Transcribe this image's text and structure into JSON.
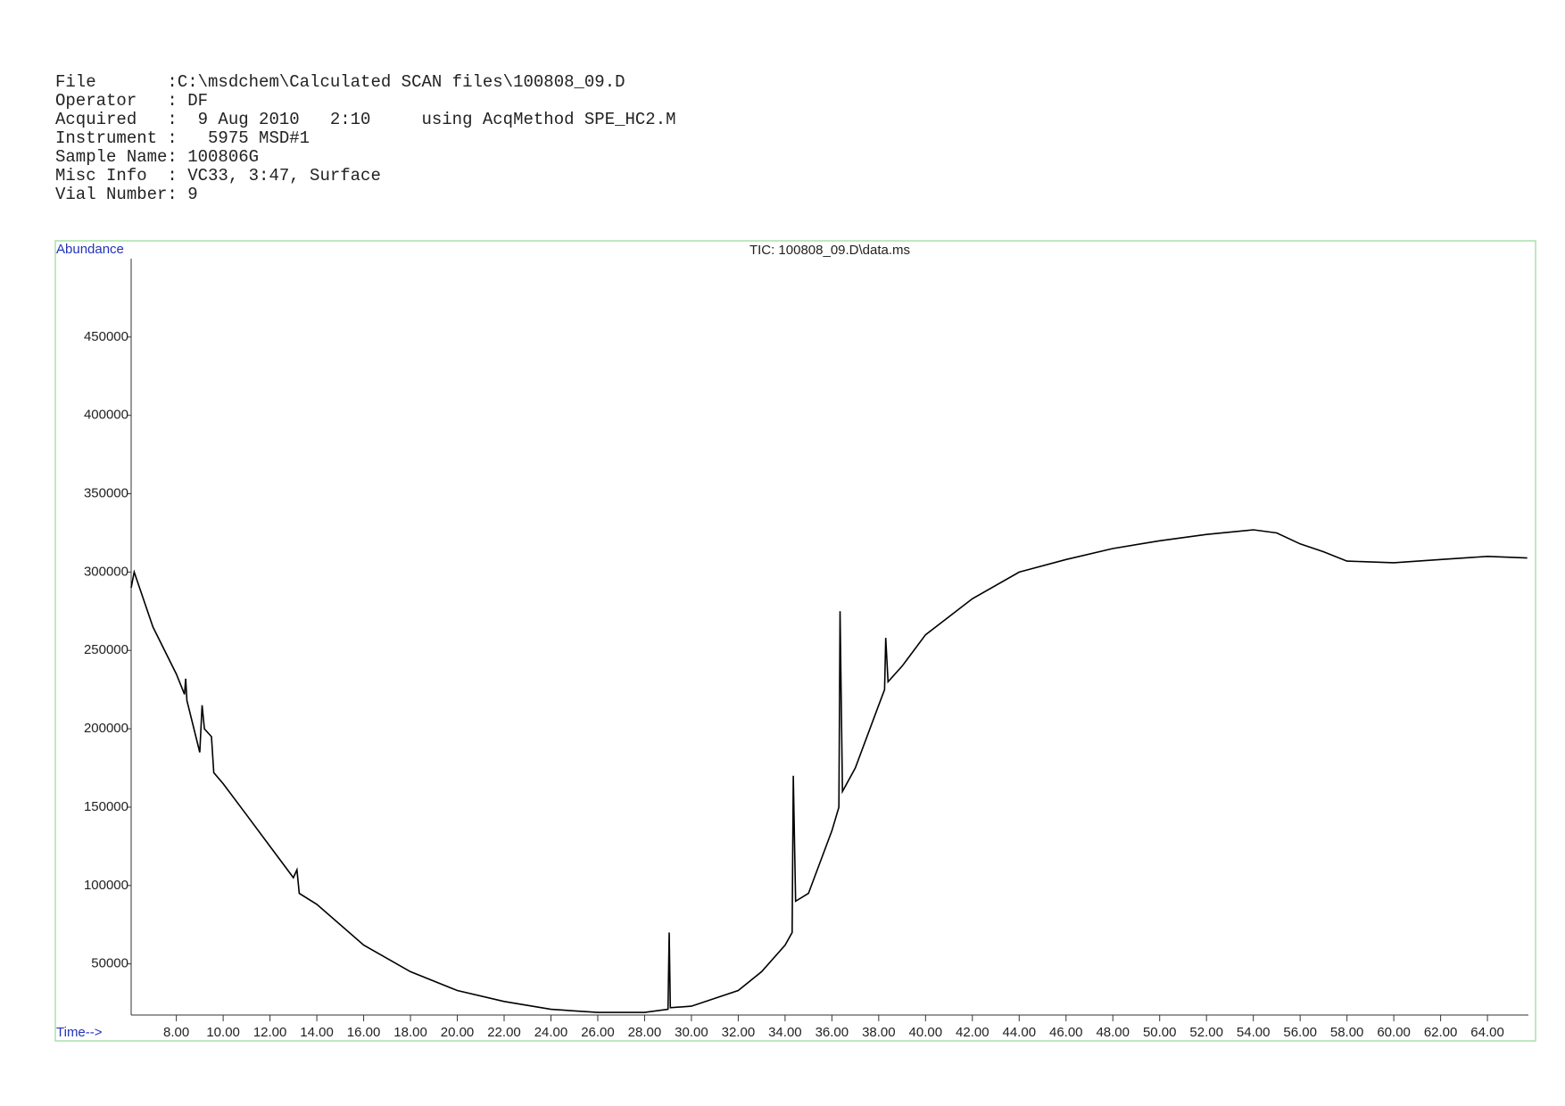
{
  "header": {
    "lines": [
      "File       :C:\\msdchem\\Calculated SCAN files\\100808_09.D",
      "Operator   : DF",
      "Acquired   :  9 Aug 2010   2:10     using AcqMethod SPE_HC2.M",
      "Instrument :   5975 MSD#1",
      "Sample Name: 100806G",
      "Misc Info  : VC33, 3:47, Surface",
      "Vial Number: 9"
    ]
  },
  "chart_data": {
    "type": "line",
    "title": "TIC: 100808_09.D\\data.ms",
    "y_label": "Abundance",
    "x_label": "Time-->",
    "color": "#000000",
    "x": [
      6.07,
      6.2,
      7,
      8,
      8.35,
      8.4,
      8.45,
      9,
      9.1,
      9.2,
      9.5,
      9.6,
      10,
      11,
      12,
      13,
      13.15,
      13.25,
      14,
      16,
      18,
      20,
      22,
      24,
      26,
      28,
      29,
      29.05,
      29.1,
      30,
      32,
      33,
      34,
      34.3,
      34.35,
      34.45,
      35,
      36,
      36.3,
      36.35,
      36.45,
      37,
      38,
      38.25,
      38.3,
      38.4,
      39,
      40,
      42,
      44,
      46,
      48,
      50,
      52,
      54,
      55,
      56,
      57,
      58,
      60,
      62,
      64,
      65.7
    ],
    "values": [
      290000,
      300000,
      265000,
      235000,
      222000,
      232000,
      218000,
      185000,
      215000,
      200000,
      195000,
      172000,
      165000,
      145000,
      125000,
      105000,
      110000,
      95000,
      88000,
      62000,
      45000,
      33000,
      26000,
      21000,
      19000,
      19000,
      21000,
      70000,
      22000,
      23000,
      33000,
      45000,
      62000,
      70000,
      170000,
      90000,
      95000,
      135000,
      150000,
      275000,
      160000,
      175000,
      215000,
      225000,
      258000,
      230000,
      240000,
      260000,
      283000,
      300000,
      308000,
      315000,
      320000,
      324000,
      327000,
      325000,
      318000,
      313000,
      307000,
      306000,
      308000,
      310000,
      309000
    ],
    "xlim": [
      6.07,
      65.75
    ],
    "ylim": [
      17360,
      500000
    ],
    "xticks": [
      {
        "value": 8,
        "label": "8.00"
      },
      {
        "value": 10,
        "label": "10.00"
      },
      {
        "value": 12,
        "label": "12.00"
      },
      {
        "value": 14,
        "label": "14.00"
      },
      {
        "value": 16,
        "label": "16.00"
      },
      {
        "value": 18,
        "label": "18.00"
      },
      {
        "value": 20,
        "label": "20.00"
      },
      {
        "value": 22,
        "label": "22.00"
      },
      {
        "value": 24,
        "label": "24.00"
      },
      {
        "value": 26,
        "label": "26.00"
      },
      {
        "value": 28,
        "label": "28.00"
      },
      {
        "value": 30,
        "label": "30.00"
      },
      {
        "value": 32,
        "label": "32.00"
      },
      {
        "value": 34,
        "label": "34.00"
      },
      {
        "value": 36,
        "label": "36.00"
      },
      {
        "value": 38,
        "label": "38.00"
      },
      {
        "value": 40,
        "label": "40.00"
      },
      {
        "value": 42,
        "label": "42.00"
      },
      {
        "value": 44,
        "label": "44.00"
      },
      {
        "value": 46,
        "label": "46.00"
      },
      {
        "value": 48,
        "label": "48.00"
      },
      {
        "value": 50,
        "label": "50.00"
      },
      {
        "value": 52,
        "label": "52.00"
      },
      {
        "value": 54,
        "label": "54.00"
      },
      {
        "value": 56,
        "label": "56.00"
      },
      {
        "value": 58,
        "label": "58.00"
      },
      {
        "value": 60,
        "label": "60.00"
      },
      {
        "value": 62,
        "label": "62.00"
      },
      {
        "value": 64,
        "label": "64.00"
      }
    ],
    "yticks": [
      50000,
      100000,
      150000,
      200000,
      250000,
      300000,
      350000,
      400000,
      450000
    ],
    "grid": false
  }
}
